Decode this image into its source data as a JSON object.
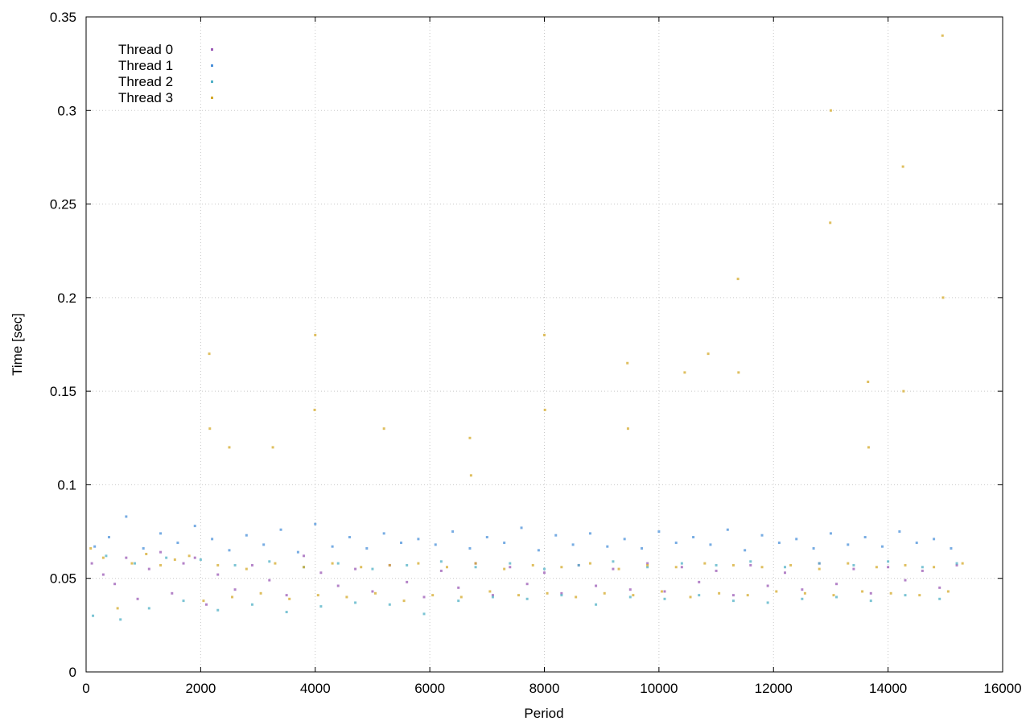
{
  "chart_data": {
    "type": "scatter",
    "title": "",
    "xlabel": "Period",
    "ylabel": "Time [sec]",
    "xlim": [
      0,
      16000
    ],
    "ylim": [
      0,
      0.35
    ],
    "x_ticks": [
      "0",
      "2000",
      "4000",
      "6000",
      "8000",
      "10000",
      "12000",
      "14000",
      "16000"
    ],
    "y_ticks": [
      "0",
      "0.05",
      "0.1",
      "0.15",
      "0.2",
      "0.25",
      "0.3",
      "0.35"
    ],
    "grid": true,
    "legend_position": "top-left",
    "series": [
      {
        "name": "Thread 0",
        "color": "#9b59b6",
        "points": [
          [
            100,
            0.058
          ],
          [
            300,
            0.052
          ],
          [
            500,
            0.047
          ],
          [
            700,
            0.061
          ],
          [
            900,
            0.039
          ],
          [
            1100,
            0.055
          ],
          [
            1300,
            0.064
          ],
          [
            1500,
            0.042
          ],
          [
            1700,
            0.058
          ],
          [
            1900,
            0.061
          ],
          [
            2100,
            0.036
          ],
          [
            2300,
            0.052
          ],
          [
            2600,
            0.044
          ],
          [
            2900,
            0.057
          ],
          [
            3200,
            0.049
          ],
          [
            3500,
            0.041
          ],
          [
            3800,
            0.062
          ],
          [
            4100,
            0.053
          ],
          [
            4400,
            0.046
          ],
          [
            4700,
            0.055
          ],
          [
            5000,
            0.043
          ],
          [
            5300,
            0.057
          ],
          [
            5600,
            0.048
          ],
          [
            5900,
            0.04
          ],
          [
            6200,
            0.054
          ],
          [
            6500,
            0.045
          ],
          [
            6800,
            0.058
          ],
          [
            7100,
            0.041
          ],
          [
            7400,
            0.056
          ],
          [
            7700,
            0.047
          ],
          [
            8000,
            0.053
          ],
          [
            8300,
            0.042
          ],
          [
            8600,
            0.057
          ],
          [
            8900,
            0.046
          ],
          [
            9200,
            0.055
          ],
          [
            9500,
            0.044
          ],
          [
            9800,
            0.058
          ],
          [
            10100,
            0.043
          ],
          [
            10400,
            0.056
          ],
          [
            10700,
            0.048
          ],
          [
            11000,
            0.054
          ],
          [
            11300,
            0.041
          ],
          [
            11600,
            0.057
          ],
          [
            11900,
            0.046
          ],
          [
            12200,
            0.053
          ],
          [
            12500,
            0.044
          ],
          [
            12800,
            0.058
          ],
          [
            13100,
            0.047
          ],
          [
            13400,
            0.055
          ],
          [
            13700,
            0.042
          ],
          [
            14000,
            0.056
          ],
          [
            14300,
            0.049
          ],
          [
            14600,
            0.054
          ],
          [
            14900,
            0.045
          ],
          [
            15200,
            0.057
          ]
        ]
      },
      {
        "name": "Thread 1",
        "color": "#4a90d9",
        "points": [
          [
            150,
            0.067
          ],
          [
            400,
            0.072
          ],
          [
            700,
            0.083
          ],
          [
            1000,
            0.066
          ],
          [
            1300,
            0.074
          ],
          [
            1600,
            0.069
          ],
          [
            1900,
            0.078
          ],
          [
            2200,
            0.071
          ],
          [
            2500,
            0.065
          ],
          [
            2800,
            0.073
          ],
          [
            3100,
            0.068
          ],
          [
            3400,
            0.076
          ],
          [
            3700,
            0.064
          ],
          [
            4000,
            0.079
          ],
          [
            4300,
            0.067
          ],
          [
            4600,
            0.072
          ],
          [
            4900,
            0.066
          ],
          [
            5200,
            0.074
          ],
          [
            5500,
            0.069
          ],
          [
            5800,
            0.071
          ],
          [
            6100,
            0.068
          ],
          [
            6400,
            0.075
          ],
          [
            6700,
            0.066
          ],
          [
            7000,
            0.072
          ],
          [
            7300,
            0.069
          ],
          [
            7600,
            0.077
          ],
          [
            7900,
            0.065
          ],
          [
            8200,
            0.073
          ],
          [
            8500,
            0.068
          ],
          [
            8800,
            0.074
          ],
          [
            9100,
            0.067
          ],
          [
            9400,
            0.071
          ],
          [
            9700,
            0.066
          ],
          [
            10000,
            0.075
          ],
          [
            10300,
            0.069
          ],
          [
            10600,
            0.072
          ],
          [
            10900,
            0.068
          ],
          [
            11200,
            0.076
          ],
          [
            11500,
            0.065
          ],
          [
            11800,
            0.073
          ],
          [
            12100,
            0.069
          ],
          [
            12400,
            0.071
          ],
          [
            12700,
            0.066
          ],
          [
            13000,
            0.074
          ],
          [
            13300,
            0.068
          ],
          [
            13600,
            0.072
          ],
          [
            13900,
            0.067
          ],
          [
            14200,
            0.075
          ],
          [
            14500,
            0.069
          ],
          [
            14800,
            0.071
          ],
          [
            15100,
            0.066
          ]
        ]
      },
      {
        "name": "Thread 2",
        "color": "#4fb0c6",
        "points": [
          [
            120,
            0.03
          ],
          [
            350,
            0.062
          ],
          [
            600,
            0.028
          ],
          [
            850,
            0.058
          ],
          [
            1100,
            0.034
          ],
          [
            1400,
            0.061
          ],
          [
            1700,
            0.038
          ],
          [
            2000,
            0.06
          ],
          [
            2300,
            0.033
          ],
          [
            2600,
            0.057
          ],
          [
            2900,
            0.036
          ],
          [
            3200,
            0.059
          ],
          [
            3500,
            0.032
          ],
          [
            3800,
            0.056
          ],
          [
            4100,
            0.035
          ],
          [
            4400,
            0.058
          ],
          [
            4700,
            0.037
          ],
          [
            5000,
            0.055
          ],
          [
            5300,
            0.036
          ],
          [
            5600,
            0.057
          ],
          [
            5900,
            0.031
          ],
          [
            6200,
            0.059
          ],
          [
            6500,
            0.038
          ],
          [
            6800,
            0.056
          ],
          [
            7100,
            0.04
          ],
          [
            7400,
            0.058
          ],
          [
            7700,
            0.039
          ],
          [
            8000,
            0.055
          ],
          [
            8300,
            0.041
          ],
          [
            8600,
            0.057
          ],
          [
            8900,
            0.036
          ],
          [
            9200,
            0.059
          ],
          [
            9500,
            0.04
          ],
          [
            9800,
            0.056
          ],
          [
            10100,
            0.039
          ],
          [
            10400,
            0.058
          ],
          [
            10700,
            0.041
          ],
          [
            11000,
            0.057
          ],
          [
            11300,
            0.038
          ],
          [
            11600,
            0.059
          ],
          [
            11900,
            0.037
          ],
          [
            12200,
            0.056
          ],
          [
            12500,
            0.039
          ],
          [
            12800,
            0.058
          ],
          [
            13100,
            0.04
          ],
          [
            13400,
            0.057
          ],
          [
            13700,
            0.038
          ],
          [
            14000,
            0.059
          ],
          [
            14300,
            0.041
          ],
          [
            14600,
            0.056
          ],
          [
            14900,
            0.039
          ],
          [
            15200,
            0.058
          ]
        ]
      },
      {
        "name": "Thread 3",
        "color": "#d4a92a",
        "points": [
          [
            80,
            0.066
          ],
          [
            300,
            0.061
          ],
          [
            550,
            0.034
          ],
          [
            800,
            0.058
          ],
          [
            1050,
            0.063
          ],
          [
            1300,
            0.057
          ],
          [
            1550,
            0.06
          ],
          [
            1800,
            0.062
          ],
          [
            2050,
            0.038
          ],
          [
            2300,
            0.057
          ],
          [
            2550,
            0.04
          ],
          [
            2800,
            0.055
          ],
          [
            3050,
            0.042
          ],
          [
            3300,
            0.058
          ],
          [
            3550,
            0.039
          ],
          [
            3800,
            0.056
          ],
          [
            4050,
            0.041
          ],
          [
            4300,
            0.058
          ],
          [
            4550,
            0.04
          ],
          [
            4800,
            0.056
          ],
          [
            5050,
            0.042
          ],
          [
            5300,
            0.057
          ],
          [
            5550,
            0.038
          ],
          [
            5800,
            0.058
          ],
          [
            6050,
            0.041
          ],
          [
            6300,
            0.056
          ],
          [
            6550,
            0.04
          ],
          [
            6800,
            0.058
          ],
          [
            7050,
            0.043
          ],
          [
            7300,
            0.055
          ],
          [
            7550,
            0.041
          ],
          [
            7800,
            0.057
          ],
          [
            8050,
            0.042
          ],
          [
            8300,
            0.056
          ],
          [
            8550,
            0.04
          ],
          [
            8800,
            0.058
          ],
          [
            9050,
            0.042
          ],
          [
            9300,
            0.055
          ],
          [
            9550,
            0.041
          ],
          [
            9800,
            0.057
          ],
          [
            10050,
            0.043
          ],
          [
            10300,
            0.056
          ],
          [
            10550,
            0.04
          ],
          [
            10800,
            0.058
          ],
          [
            11050,
            0.042
          ],
          [
            11300,
            0.057
          ],
          [
            11550,
            0.041
          ],
          [
            11800,
            0.056
          ],
          [
            12050,
            0.043
          ],
          [
            12300,
            0.057
          ],
          [
            12550,
            0.042
          ],
          [
            12800,
            0.055
          ],
          [
            13050,
            0.041
          ],
          [
            13300,
            0.058
          ],
          [
            13550,
            0.043
          ],
          [
            13800,
            0.056
          ],
          [
            14050,
            0.042
          ],
          [
            14300,
            0.057
          ],
          [
            14550,
            0.041
          ],
          [
            14800,
            0.056
          ],
          [
            15050,
            0.043
          ],
          [
            15300,
            0.058
          ],
          [
            6700,
            0.125
          ],
          [
            6720,
            0.105
          ],
          [
            8000,
            0.18
          ],
          [
            8010,
            0.14
          ],
          [
            9450,
            0.165
          ],
          [
            9460,
            0.13
          ],
          [
            10450,
            0.16
          ],
          [
            10860,
            0.17
          ],
          [
            11380,
            0.21
          ],
          [
            11390,
            0.16
          ],
          [
            12990,
            0.24
          ],
          [
            13000,
            0.3
          ],
          [
            13650,
            0.155
          ],
          [
            13660,
            0.12
          ],
          [
            14260,
            0.27
          ],
          [
            14270,
            0.15
          ],
          [
            14950,
            0.34
          ],
          [
            14960,
            0.2
          ],
          [
            4000,
            0.18
          ],
          [
            3990,
            0.14
          ],
          [
            2150,
            0.17
          ],
          [
            2160,
            0.13
          ],
          [
            2500,
            0.12
          ],
          [
            5200,
            0.13
          ],
          [
            3260,
            0.12
          ]
        ]
      }
    ]
  }
}
